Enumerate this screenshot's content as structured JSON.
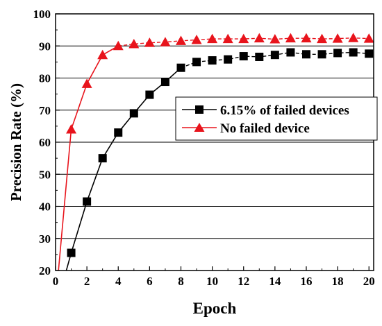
{
  "chart_data": {
    "type": "line",
    "xlabel": "Epoch",
    "ylabel": "Precision Rate (%)",
    "xlim": [
      0,
      20.3
    ],
    "ylim": [
      20,
      100
    ],
    "xticks": [
      0,
      2,
      4,
      6,
      8,
      10,
      12,
      14,
      16,
      18,
      20
    ],
    "yticks": [
      20,
      30,
      40,
      50,
      60,
      70,
      80,
      90,
      100
    ],
    "grid": "horizontal",
    "legend_position": "center-right",
    "series": [
      {
        "name": "6.15% of failed devices",
        "color": "#000000",
        "marker": "square",
        "line_style": "dashed",
        "x": [
          0,
          1,
          2,
          3,
          4,
          5,
          6,
          7,
          8,
          9,
          10,
          11,
          12,
          13,
          14,
          15,
          16,
          17,
          18,
          19,
          20
        ],
        "y": [
          8,
          25.5,
          41.5,
          55,
          63,
          69,
          74.8,
          78.8,
          83.2,
          85,
          85.5,
          85.8,
          86.8,
          86.6,
          87.2,
          88,
          87.4,
          87.4,
          87.8,
          88,
          87.6
        ]
      },
      {
        "name": "No failed device",
        "color": "#e8141c",
        "marker": "triangle",
        "line_style": "dashed",
        "x": [
          0,
          1,
          2,
          3,
          4,
          5,
          6,
          7,
          8,
          9,
          10,
          11,
          12,
          13,
          14,
          15,
          16,
          17,
          18,
          19,
          20
        ],
        "y": [
          10,
          64,
          78.2,
          87.2,
          90,
          90.6,
          91,
          91.2,
          91.6,
          91.9,
          92.2,
          92.2,
          92.2,
          92.4,
          92.1,
          92.4,
          92.4,
          92.2,
          92.3,
          92.5,
          92.3
        ]
      }
    ]
  }
}
